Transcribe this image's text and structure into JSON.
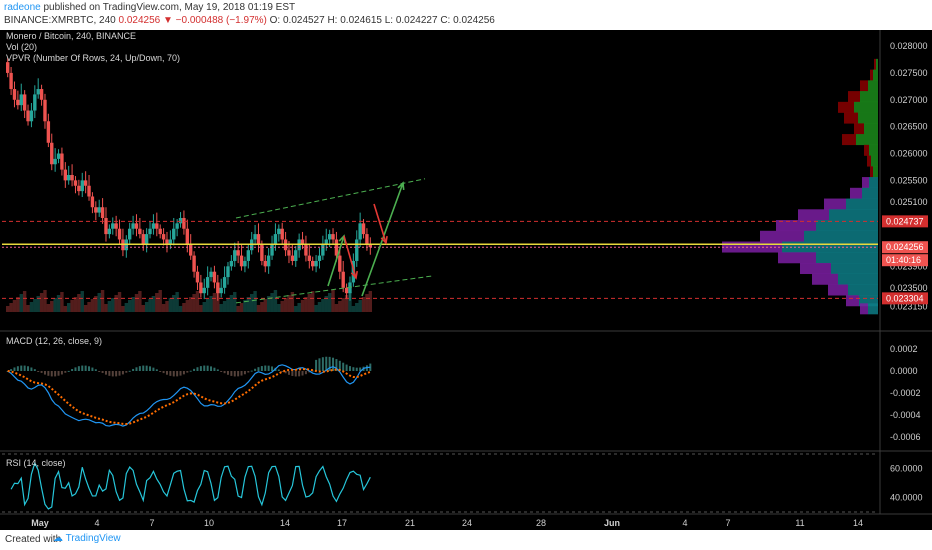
{
  "header": {
    "author": "radeone",
    "published": "published on TradingView.com, May 19, 2018 01:19 EST",
    "symbol_line": "BINANCE:XMRBTC, 240",
    "last": "0.024256",
    "change": "−0.000488 (−1.97%)",
    "ohlc": "O: 0.024527  H: 0.024615  L: 0.024227  C: 0.024256"
  },
  "legend": {
    "pair": "Monero / Bitcoin, 240, BINANCE",
    "vol": "Vol (20)",
    "vpvr": "VPVR (Number Of Rows, 24, Up/Down, 70)",
    "macd": "MACD (12, 26, close, 9)",
    "rsi": "RSI (14, close)"
  },
  "price_axis": {
    "ticks": [
      "0.028000",
      "0.027500",
      "0.027000",
      "0.026500",
      "0.026000",
      "0.025500",
      "0.025100",
      "0.024737",
      "0.024256",
      "0.023900",
      "0.023500",
      "0.023304",
      "0.023150"
    ],
    "badge_high": "0.024737",
    "badge_last": "0.024256",
    "countdown": "01:40:16",
    "badge_low": "0.023304"
  },
  "macd_axis": {
    "ticks": [
      "0.0002",
      "0.0000",
      "-0.0002",
      "-0.0004",
      "-0.0006"
    ]
  },
  "rsi_axis": {
    "ticks": [
      "60.0000",
      "40.0000"
    ]
  },
  "time_axis": {
    "labels": [
      "May",
      "4",
      "7",
      "10",
      "14",
      "17",
      "21",
      "24",
      "28",
      "Jun",
      "4",
      "7",
      "11",
      "14"
    ]
  },
  "footer": {
    "created": "Created with",
    "brand": "TradingView"
  },
  "colors": {
    "up": "#26a69a",
    "down": "#ef5350",
    "macd": "#2196f3",
    "signal": "#ff6d00",
    "rsi": "#26c6da",
    "vpvr_up_low": "#0e7c86",
    "vpvr_down_low": "#7b1fa2",
    "vpvr_up_high": "#1b8c1b",
    "vpvr_down_high": "#8b0000"
  },
  "chart_data": {
    "type": "candlestick",
    "price_range": [
      0.02305,
      0.02815
    ],
    "levels": {
      "resistance": 0.024737,
      "last": 0.024256,
      "support": 0.023304
    },
    "candles_count": 108,
    "close_series": [
      0.0275,
      0.0272,
      0.027,
      0.0269,
      0.0271,
      0.0268,
      0.0266,
      0.0268,
      0.0271,
      0.0272,
      0.027,
      0.0266,
      0.0262,
      0.0258,
      0.0259,
      0.026,
      0.0257,
      0.0255,
      0.0256,
      0.0255,
      0.0254,
      0.0253,
      0.0255,
      0.0254,
      0.0252,
      0.025,
      0.0249,
      0.025,
      0.0248,
      0.0245,
      0.0246,
      0.0247,
      0.0246,
      0.0244,
      0.0242,
      0.0244,
      0.0246,
      0.0247,
      0.0246,
      0.0245,
      0.0243,
      0.0245,
      0.0246,
      0.0247,
      0.0246,
      0.0245,
      0.0244,
      0.0243,
      0.0244,
      0.0246,
      0.0247,
      0.0248,
      0.0246,
      0.0243,
      0.0241,
      0.0238,
      0.0236,
      0.0234,
      0.0235,
      0.0237,
      0.0238,
      0.0236,
      0.0234,
      0.0235,
      0.0237,
      0.0239,
      0.024,
      0.0242,
      0.0241,
      0.0239,
      0.024,
      0.0242,
      0.0244,
      0.0245,
      0.0243,
      0.024,
      0.0239,
      0.0241,
      0.0243,
      0.0245,
      0.0246,
      0.0244,
      0.0242,
      0.0241,
      0.024,
      0.0242,
      0.0244,
      0.0243,
      0.0241,
      0.024,
      0.0239,
      0.024,
      0.0241,
      0.0243,
      0.0244,
      0.0245,
      0.0244,
      0.0241,
      0.0238,
      0.0235,
      0.0234,
      0.0236,
      0.024,
      0.0244,
      0.0247,
      0.0245,
      0.0243,
      0.024256
    ],
    "macd_range": [
      -0.0007,
      0.0003
    ],
    "rsi_range": [
      30,
      70
    ]
  }
}
